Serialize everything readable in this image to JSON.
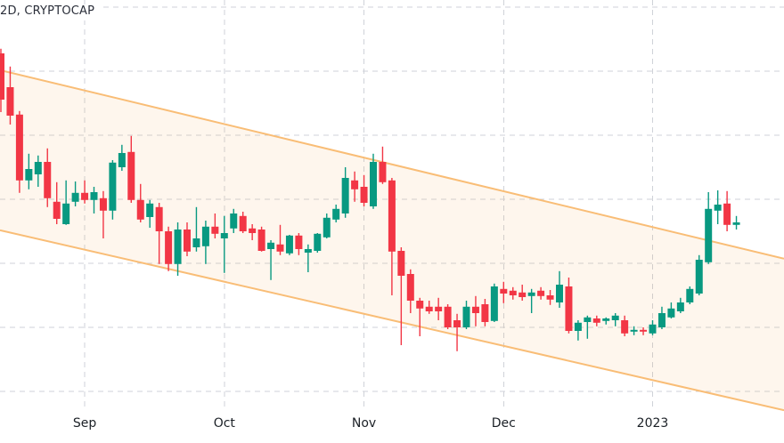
{
  "legend": {
    "text": "2D, CRYPTOCAP"
  },
  "chart_data": {
    "type": "candlestick",
    "symbol": "CRYPTOCAP",
    "interval": "2D",
    "y_axis_visible": false,
    "value_scale": {
      "min": 0,
      "max": 115,
      "unit": "relative (no price scale visible)"
    },
    "x_ticks": [
      {
        "label": "Sep",
        "index": 9
      },
      {
        "label": "Oct",
        "index": 24
      },
      {
        "label": "Nov",
        "index": 39
      },
      {
        "label": "Dec",
        "index": 54
      },
      {
        "label": "2023",
        "index": 70
      }
    ],
    "h_gridline_values": [
      113,
      95,
      77,
      59,
      41,
      23,
      5
    ],
    "channel": {
      "shape": "descending parallel channel",
      "upper": [
        95.3,
        42.3
      ],
      "lower": [
        50.3,
        -0.3
      ]
    },
    "candles": [
      [
        100,
        101.3,
        83.5,
        87
      ],
      [
        90.5,
        96.3,
        80,
        82.5
      ],
      [
        82.8,
        83.8,
        60.8,
        64.3
      ],
      [
        64.3,
        71.8,
        61.8,
        67.5
      ],
      [
        66,
        71.3,
        62.5,
        69.5
      ],
      [
        69.5,
        73.3,
        56.8,
        59.3
      ],
      [
        58.3,
        63.8,
        52,
        53.5
      ],
      [
        52,
        64.3,
        51.8,
        57.8
      ],
      [
        58.3,
        64,
        57,
        60.8
      ],
      [
        60.8,
        64.3,
        57.8,
        58.8
      ],
      [
        58.8,
        62.5,
        55,
        61
      ],
      [
        59.3,
        61.3,
        48,
        55.8
      ],
      [
        55.8,
        70,
        53.3,
        69.3
      ],
      [
        68,
        74.3,
        67,
        72
      ],
      [
        72.3,
        76.8,
        58,
        58.8
      ],
      [
        58.8,
        63.3,
        52.5,
        53.3
      ],
      [
        54,
        58.8,
        51,
        57.8
      ],
      [
        56.8,
        58,
        40.8,
        50
      ],
      [
        50,
        51.3,
        38.8,
        40.8
      ],
      [
        40.8,
        52.5,
        37.5,
        50.5
      ],
      [
        50.5,
        52.5,
        43,
        44.3
      ],
      [
        45.5,
        56.8,
        44.3,
        48
      ],
      [
        45.8,
        53,
        40.8,
        51.3
      ],
      [
        51.3,
        55,
        48,
        49.3
      ],
      [
        48,
        54.3,
        38.3,
        49.5
      ],
      [
        50.8,
        56.3,
        49.5,
        55
      ],
      [
        54.3,
        55.5,
        49.5,
        50
      ],
      [
        50.8,
        52,
        47.5,
        49.5
      ],
      [
        50.5,
        51.3,
        44.3,
        44.5
      ],
      [
        45,
        47.5,
        36.3,
        46.8
      ],
      [
        46.3,
        51.8,
        43.3,
        44.3
      ],
      [
        43.8,
        49,
        43.3,
        48.8
      ],
      [
        48.8,
        49.5,
        43.3,
        45
      ],
      [
        44,
        46.3,
        38.5,
        45
      ],
      [
        44.5,
        49.5,
        44,
        49.3
      ],
      [
        48.3,
        55,
        48,
        53.8
      ],
      [
        53.3,
        57.5,
        52.5,
        56.3
      ],
      [
        55,
        68,
        53.8,
        65
      ],
      [
        64.3,
        66.8,
        58.3,
        61.8
      ],
      [
        62.5,
        65.8,
        57,
        58
      ],
      [
        57,
        71.8,
        56.3,
        69.5
      ],
      [
        69.5,
        73.8,
        63.3,
        63.8
      ],
      [
        64.3,
        65,
        32,
        44.3
      ],
      [
        44.5,
        45.5,
        18,
        37.5
      ],
      [
        38,
        39.3,
        27,
        30.5
      ],
      [
        30.5,
        31.3,
        20.5,
        28.3
      ],
      [
        28.8,
        30.5,
        26.8,
        27.5
      ],
      [
        28.8,
        31.3,
        25,
        27.5
      ],
      [
        28.8,
        29.5,
        22.5,
        23
      ],
      [
        25,
        26.8,
        16.3,
        23
      ],
      [
        23,
        30.5,
        22.5,
        28.8
      ],
      [
        28.8,
        31.8,
        23.3,
        27
      ],
      [
        29.5,
        31,
        23.3,
        24.5
      ],
      [
        24.8,
        35.3,
        24.5,
        34.5
      ],
      [
        33.8,
        35.8,
        29.8,
        32.5
      ],
      [
        33.3,
        34.3,
        30.8,
        32
      ],
      [
        32.8,
        35,
        30.5,
        31.5
      ],
      [
        31.8,
        33.8,
        27,
        32.8
      ],
      [
        33.3,
        34.3,
        30.8,
        31.8
      ],
      [
        32,
        33.5,
        29.3,
        30.8
      ],
      [
        30,
        38.8,
        28.5,
        35
      ],
      [
        34.5,
        37,
        21.3,
        22
      ],
      [
        22,
        25,
        19.3,
        24.3
      ],
      [
        24.5,
        26.3,
        19.8,
        25.8
      ],
      [
        25.5,
        26.3,
        23.3,
        24.3
      ],
      [
        24.8,
        25.8,
        23.8,
        25.5
      ],
      [
        25,
        27,
        23.3,
        26.3
      ],
      [
        25,
        26.3,
        20.5,
        21.3
      ],
      [
        21.8,
        23.3,
        20.8,
        22.3
      ],
      [
        22.3,
        23,
        20.8,
        21.8
      ],
      [
        21.3,
        25,
        20.8,
        23.8
      ],
      [
        23,
        28.8,
        22.5,
        27
      ],
      [
        25.8,
        30,
        25.5,
        28.3
      ],
      [
        27.5,
        31.3,
        27,
        30
      ],
      [
        30,
        34.5,
        29.5,
        33.8
      ],
      [
        32.5,
        43.3,
        32,
        42
      ],
      [
        41.3,
        61,
        40.8,
        56.3
      ],
      [
        55.8,
        61.5,
        52,
        57.5
      ],
      [
        57.8,
        61.3,
        50,
        51.8
      ],
      [
        51.8,
        54.3,
        50.5,
        52.5
      ]
    ],
    "colors": {
      "up": "#089981",
      "down": "#f23645",
      "channel_line": "#f9bd76",
      "channel_fill": "rgba(247,166,76,0.10)",
      "grid": "#cfd2d8",
      "axis_text": "#1b2026",
      "legend_text": "#2a2e39"
    }
  }
}
